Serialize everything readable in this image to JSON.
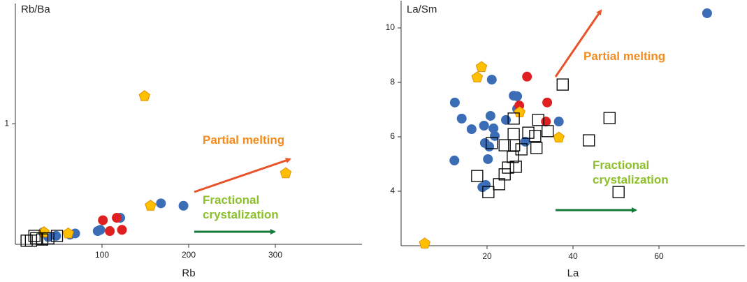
{
  "chart_data": [
    {
      "type": "scatter",
      "ylabel": "Rb/Ba",
      "xlabel": "Rb",
      "xlim": [
        0,
        400
      ],
      "ylim": [
        0,
        2
      ],
      "xticks": [
        100,
        200,
        300
      ],
      "yticks": [
        1
      ],
      "annotations": [
        {
          "text": "Partial melting",
          "color": "#f28c1e"
        },
        {
          "text": "Fractional crystalization",
          "color": "#8cbf2a"
        }
      ],
      "series": [
        {
          "color": "#3a6db5",
          "marker": "circle",
          "x": [
            194,
            168,
            121,
            95,
            98,
            69,
            63,
            47,
            32,
            38
          ],
          "values": [
            0.32,
            0.34,
            0.22,
            0.11,
            0.12,
            0.09,
            0.08,
            0.07,
            0.1,
            0.06
          ]
        },
        {
          "color": "#e02020",
          "marker": "circle",
          "x": [
            101,
            117,
            109,
            123
          ],
          "values": [
            0.2,
            0.22,
            0.11,
            0.12
          ]
        },
        {
          "color": "#ffc000",
          "marker": "pentagon",
          "x": [
            149,
            312,
            156,
            33,
            61
          ],
          "values": [
            1.23,
            0.59,
            0.32,
            0.1,
            0.09
          ]
        },
        {
          "color": "#000000",
          "marker": "square",
          "x": [
            13,
            18,
            24,
            31,
            38,
            22,
            48
          ],
          "values": [
            0.03,
            0.03,
            0.05,
            0.04,
            0.05,
            0.07,
            0.07
          ]
        }
      ]
    },
    {
      "type": "scatter",
      "ylabel": "La/Sm",
      "xlabel": "La",
      "xlim": [
        0,
        80
      ],
      "ylim": [
        2,
        11
      ],
      "xticks": [
        20,
        40,
        60
      ],
      "yticks": [
        4,
        6,
        8,
        10
      ],
      "annotations": [
        {
          "text": "Partial melting",
          "color": "#f28c1e"
        },
        {
          "text": "Fractional crystalization",
          "color": "#8cbf2a"
        }
      ],
      "series": [
        {
          "color": "#3a6db5",
          "marker": "circle",
          "x": [
            71.2,
            12.5,
            14.1,
            21.1,
            26.2,
            27.0,
            20.8,
            19.3,
            21.5,
            16.4,
            21.8,
            19.5,
            20.5,
            20.2,
            12.4,
            19.7,
            18.9,
            24.4,
            27.0,
            36.7,
            28.9
          ],
          "values": [
            10.54,
            7.26,
            6.67,
            8.1,
            7.51,
            7.49,
            6.77,
            6.41,
            6.31,
            6.28,
            6.03,
            5.77,
            5.64,
            5.18,
            5.13,
            4.23,
            4.15,
            6.62,
            7.03,
            6.56,
            5.82
          ]
        },
        {
          "color": "#e02020",
          "marker": "circle",
          "x": [
            29.3,
            27.5,
            34.0,
            33.7
          ],
          "values": [
            8.21,
            7.15,
            7.26,
            6.56
          ]
        },
        {
          "color": "#ffc000",
          "marker": "pentagon",
          "x": [
            18.7,
            17.7,
            27.6,
            36.7,
            5.5
          ],
          "values": [
            8.56,
            8.18,
            6.9,
            5.97,
            2.08
          ]
        },
        {
          "color": "#000000",
          "marker": "square",
          "x": [
            37.6,
            48.5,
            43.7,
            50.6,
            20.3,
            17.7,
            22.8,
            24.1,
            24.9,
            26.7,
            26.0,
            24.1,
            26.3,
            21.1,
            28.0,
            29.6,
            31.5,
            31.2,
            31.9,
            26.2,
            34.1,
            26.2
          ],
          "values": [
            7.92,
            6.69,
            5.87,
            3.97,
            3.97,
            4.56,
            4.26,
            4.62,
            4.87,
            4.9,
            5.26,
            5.69,
            5.69,
            5.77,
            5.54,
            6.15,
            5.59,
            6.03,
            6.62,
            6.67,
            6.21,
            6.1
          ]
        }
      ]
    }
  ]
}
